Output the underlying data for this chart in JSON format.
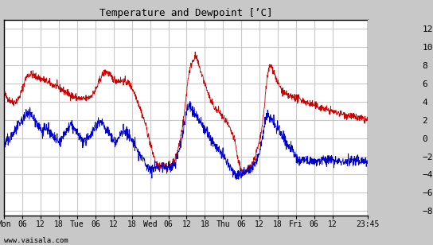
{
  "title": "Temperature and Dewpoint [’C]",
  "ylabel_right_ticks": [
    -8,
    -6,
    -4,
    -2,
    0,
    2,
    4,
    6,
    8,
    10,
    12
  ],
  "ylim": [
    -8.5,
    13.0
  ],
  "background_color": "#c8c8c8",
  "plot_bg_color": "#ffffff",
  "grid_color": "#c8c8c8",
  "temp_color": "#cc0000",
  "dewpoint_color": "#0000cc",
  "watermark": "www.vaisala.com",
  "x_tick_labels": [
    "Mon",
    "06",
    "12",
    "18",
    "Tue",
    "06",
    "12",
    "18",
    "Wed",
    "06",
    "12",
    "18",
    "Thu",
    "06",
    "12",
    "18",
    "Fri",
    "06",
    "12",
    "23:45"
  ],
  "x_tick_positions": [
    0,
    6,
    12,
    18,
    24,
    30,
    36,
    42,
    48,
    54,
    60,
    66,
    72,
    78,
    84,
    90,
    96,
    102,
    108,
    119.75
  ],
  "total_hours": 119.75,
  "temp_data": [
    [
      0,
      5.0
    ],
    [
      0.25,
      4.8
    ],
    [
      0.5,
      4.6
    ],
    [
      0.75,
      4.5
    ],
    [
      1,
      4.4
    ],
    [
      1.5,
      4.2
    ],
    [
      2,
      4.1
    ],
    [
      2.5,
      4.0
    ],
    [
      3,
      3.9
    ],
    [
      3.5,
      4.0
    ],
    [
      4,
      4.1
    ],
    [
      4.5,
      4.3
    ],
    [
      5,
      4.5
    ],
    [
      5.5,
      5.0
    ],
    [
      6,
      5.5
    ],
    [
      6.5,
      6.0
    ],
    [
      7,
      6.5
    ],
    [
      7.5,
      6.8
    ],
    [
      8,
      7.0
    ],
    [
      8.5,
      7.0
    ],
    [
      9,
      7.0
    ],
    [
      9.5,
      6.9
    ],
    [
      10,
      6.8
    ],
    [
      10.5,
      6.7
    ],
    [
      11,
      6.7
    ],
    [
      11.5,
      6.6
    ],
    [
      12,
      6.5
    ],
    [
      12.5,
      6.5
    ],
    [
      13,
      6.4
    ],
    [
      13.5,
      6.3
    ],
    [
      14,
      6.2
    ],
    [
      14.5,
      6.1
    ],
    [
      15,
      6.0
    ],
    [
      15.5,
      5.9
    ],
    [
      16,
      5.8
    ],
    [
      16.5,
      5.8
    ],
    [
      17,
      5.7
    ],
    [
      17.5,
      5.6
    ],
    [
      18,
      5.5
    ],
    [
      18.5,
      5.4
    ],
    [
      19,
      5.3
    ],
    [
      19.5,
      5.2
    ],
    [
      20,
      5.1
    ],
    [
      20.5,
      5.0
    ],
    [
      21,
      4.9
    ],
    [
      21.5,
      4.8
    ],
    [
      22,
      4.7
    ],
    [
      22.5,
      4.6
    ],
    [
      23,
      4.5
    ],
    [
      23.5,
      4.5
    ],
    [
      24,
      4.4
    ],
    [
      24.5,
      4.4
    ],
    [
      25,
      4.3
    ],
    [
      25.5,
      4.3
    ],
    [
      26,
      4.3
    ],
    [
      26.5,
      4.3
    ],
    [
      27,
      4.3
    ],
    [
      27.5,
      4.4
    ],
    [
      28,
      4.5
    ],
    [
      28.5,
      4.6
    ],
    [
      29,
      4.8
    ],
    [
      29.5,
      5.0
    ],
    [
      30,
      5.3
    ],
    [
      30.5,
      5.6
    ],
    [
      31,
      6.0
    ],
    [
      31.5,
      6.4
    ],
    [
      32,
      6.8
    ],
    [
      32.5,
      7.0
    ],
    [
      33,
      7.2
    ],
    [
      33.5,
      7.3
    ],
    [
      34,
      7.2
    ],
    [
      34.5,
      7.0
    ],
    [
      35,
      6.8
    ],
    [
      35.5,
      6.6
    ],
    [
      36,
      6.5
    ],
    [
      36.5,
      6.4
    ],
    [
      37,
      6.3
    ],
    [
      37.5,
      6.3
    ],
    [
      38,
      6.3
    ],
    [
      38.5,
      6.3
    ],
    [
      39,
      6.3
    ],
    [
      39.5,
      6.2
    ],
    [
      40,
      6.2
    ],
    [
      40.5,
      6.1
    ],
    [
      41,
      6.0
    ],
    [
      41.5,
      5.8
    ],
    [
      42,
      5.5
    ],
    [
      42.5,
      5.2
    ],
    [
      43,
      4.8
    ],
    [
      43.5,
      4.4
    ],
    [
      44,
      4.0
    ],
    [
      44.5,
      3.5
    ],
    [
      45,
      3.0
    ],
    [
      45.5,
      2.5
    ],
    [
      46,
      2.0
    ],
    [
      46.5,
      1.5
    ],
    [
      47,
      0.8
    ],
    [
      47.5,
      0.2
    ],
    [
      48,
      -0.5
    ],
    [
      48.5,
      -1.2
    ],
    [
      49,
      -1.8
    ],
    [
      49.5,
      -2.3
    ],
    [
      50,
      -2.8
    ],
    [
      50.5,
      -3.0
    ],
    [
      51,
      -3.2
    ],
    [
      51.5,
      -3.2
    ],
    [
      52,
      -3.0
    ],
    [
      52.5,
      -3.0
    ],
    [
      53,
      -3.0
    ],
    [
      53.5,
      -3.1
    ],
    [
      54,
      -3.2
    ],
    [
      54.5,
      -3.0
    ],
    [
      55,
      -2.8
    ],
    [
      55.5,
      -2.6
    ],
    [
      56,
      -2.4
    ],
    [
      56.5,
      -2.0
    ],
    [
      57,
      -1.5
    ],
    [
      57.5,
      -0.8
    ],
    [
      58,
      0.0
    ],
    [
      58.5,
      1.0
    ],
    [
      59,
      2.0
    ],
    [
      59.5,
      3.5
    ],
    [
      60,
      5.0
    ],
    [
      60.5,
      6.5
    ],
    [
      61,
      7.5
    ],
    [
      61.5,
      8.0
    ],
    [
      62,
      8.5
    ],
    [
      62.5,
      8.8
    ],
    [
      63,
      9.0
    ],
    [
      63.25,
      8.8
    ],
    [
      63.5,
      8.5
    ],
    [
      64,
      8.0
    ],
    [
      64.5,
      7.5
    ],
    [
      65,
      7.0
    ],
    [
      65.5,
      6.5
    ],
    [
      66,
      6.0
    ],
    [
      66.5,
      5.5
    ],
    [
      67,
      5.0
    ],
    [
      67.5,
      4.5
    ],
    [
      68,
      4.0
    ],
    [
      68.5,
      3.8
    ],
    [
      69,
      3.5
    ],
    [
      69.5,
      3.2
    ],
    [
      70,
      3.0
    ],
    [
      70.5,
      3.0
    ],
    [
      71,
      2.8
    ],
    [
      71.5,
      2.5
    ],
    [
      72,
      2.2
    ],
    [
      72.5,
      2.0
    ],
    [
      73,
      1.8
    ],
    [
      73.5,
      1.5
    ],
    [
      74,
      1.2
    ],
    [
      74.5,
      0.8
    ],
    [
      75,
      0.5
    ],
    [
      75.5,
      0.0
    ],
    [
      76,
      -0.5
    ],
    [
      76.5,
      -1.5
    ],
    [
      77,
      -2.5
    ],
    [
      77.5,
      -3.0
    ],
    [
      78,
      -3.5
    ],
    [
      78.5,
      -3.8
    ],
    [
      79,
      -3.8
    ],
    [
      79.5,
      -3.7
    ],
    [
      80,
      -3.5
    ],
    [
      80.5,
      -3.3
    ],
    [
      81,
      -3.0
    ],
    [
      81.5,
      -2.8
    ],
    [
      82,
      -2.5
    ],
    [
      82.5,
      -2.0
    ],
    [
      83,
      -1.5
    ],
    [
      83.5,
      -1.0
    ],
    [
      84,
      -0.5
    ],
    [
      84.5,
      0.5
    ],
    [
      85,
      1.5
    ],
    [
      85.5,
      3.0
    ],
    [
      86,
      5.0
    ],
    [
      86.5,
      6.5
    ],
    [
      87,
      7.5
    ],
    [
      87.5,
      8.0
    ],
    [
      88,
      7.8
    ],
    [
      88.5,
      7.5
    ],
    [
      89,
      7.0
    ],
    [
      89.5,
      6.5
    ],
    [
      90,
      6.0
    ],
    [
      90.5,
      5.8
    ],
    [
      91,
      5.5
    ],
    [
      91.5,
      5.2
    ],
    [
      92,
      5.0
    ],
    [
      92.5,
      4.8
    ],
    [
      93,
      4.7
    ],
    [
      93.5,
      4.6
    ],
    [
      94,
      4.6
    ],
    [
      94.5,
      4.5
    ],
    [
      95,
      4.5
    ],
    [
      95.5,
      4.5
    ],
    [
      96,
      4.4
    ],
    [
      96.5,
      4.3
    ],
    [
      97,
      4.3
    ],
    [
      97.5,
      4.2
    ],
    [
      98,
      4.2
    ],
    [
      98.5,
      4.1
    ],
    [
      99,
      4.0
    ],
    [
      99.5,
      3.9
    ],
    [
      100,
      3.8
    ],
    [
      100.5,
      3.8
    ],
    [
      101,
      3.7
    ],
    [
      101.5,
      3.7
    ],
    [
      102,
      3.6
    ],
    [
      102.5,
      3.5
    ],
    [
      103,
      3.5
    ],
    [
      103.5,
      3.4
    ],
    [
      104,
      3.4
    ],
    [
      104.5,
      3.3
    ],
    [
      105,
      3.3
    ],
    [
      105.5,
      3.2
    ],
    [
      106,
      3.1
    ],
    [
      106.5,
      3.1
    ],
    [
      107,
      3.0
    ],
    [
      107.5,
      3.0
    ],
    [
      108,
      2.9
    ],
    [
      108.5,
      2.9
    ],
    [
      109,
      2.8
    ],
    [
      109.5,
      2.8
    ],
    [
      110,
      2.8
    ],
    [
      110.5,
      2.7
    ],
    [
      111,
      2.7
    ],
    [
      111.5,
      2.6
    ],
    [
      112,
      2.6
    ],
    [
      112.5,
      2.5
    ],
    [
      113,
      2.5
    ],
    [
      113.5,
      2.5
    ],
    [
      114,
      2.4
    ],
    [
      114.5,
      2.4
    ],
    [
      115,
      2.3
    ],
    [
      115.5,
      2.3
    ],
    [
      116,
      2.2
    ],
    [
      116.5,
      2.2
    ],
    [
      117,
      2.2
    ],
    [
      117.5,
      2.1
    ],
    [
      118,
      2.1
    ],
    [
      118.5,
      2.0
    ],
    [
      119,
      2.0
    ],
    [
      119.75,
      2.0
    ]
  ],
  "dewpoint_data": [
    [
      0,
      -0.5
    ],
    [
      0.25,
      -0.6
    ],
    [
      0.5,
      -0.5
    ],
    [
      0.75,
      -0.4
    ],
    [
      1,
      -0.3
    ],
    [
      1.5,
      -0.2
    ],
    [
      2,
      0.0
    ],
    [
      2.5,
      0.3
    ],
    [
      3,
      0.5
    ],
    [
      3.5,
      0.8
    ],
    [
      4,
      1.0
    ],
    [
      4.5,
      1.2
    ],
    [
      5,
      1.5
    ],
    [
      5.5,
      1.8
    ],
    [
      6,
      2.0
    ],
    [
      6.5,
      2.2
    ],
    [
      7,
      2.5
    ],
    [
      7.5,
      2.8
    ],
    [
      8,
      3.0
    ],
    [
      8.5,
      2.8
    ],
    [
      9,
      2.5
    ],
    [
      9.5,
      2.3
    ],
    [
      10,
      2.0
    ],
    [
      10.5,
      1.8
    ],
    [
      11,
      1.5
    ],
    [
      11.5,
      1.3
    ],
    [
      12,
      1.0
    ],
    [
      12.5,
      0.8
    ],
    [
      13,
      1.0
    ],
    [
      13.5,
      1.2
    ],
    [
      14,
      1.0
    ],
    [
      14.5,
      0.8
    ],
    [
      15,
      0.5
    ],
    [
      15.5,
      0.3
    ],
    [
      16,
      0.2
    ],
    [
      16.5,
      0.0
    ],
    [
      17,
      -0.2
    ],
    [
      17.5,
      -0.3
    ],
    [
      18,
      -0.5
    ],
    [
      18.5,
      -0.3
    ],
    [
      19,
      0.0
    ],
    [
      19.5,
      0.2
    ],
    [
      20,
      0.5
    ],
    [
      20.5,
      0.8
    ],
    [
      21,
      1.0
    ],
    [
      21.5,
      1.2
    ],
    [
      22,
      1.5
    ],
    [
      22.5,
      1.2
    ],
    [
      23,
      1.0
    ],
    [
      23.5,
      0.8
    ],
    [
      24,
      0.5
    ],
    [
      24.5,
      0.3
    ],
    [
      25,
      0.0
    ],
    [
      25.5,
      -0.2
    ],
    [
      26,
      -0.3
    ],
    [
      26.5,
      -0.5
    ],
    [
      27,
      -0.3
    ],
    [
      27.5,
      0.0
    ],
    [
      28,
      0.3
    ],
    [
      28.5,
      0.5
    ],
    [
      29,
      0.8
    ],
    [
      29.5,
      1.0
    ],
    [
      30,
      1.2
    ],
    [
      30.5,
      1.5
    ],
    [
      31,
      1.8
    ],
    [
      31.5,
      2.0
    ],
    [
      32,
      1.8
    ],
    [
      32.5,
      1.5
    ],
    [
      33,
      1.3
    ],
    [
      33.5,
      1.0
    ],
    [
      34,
      0.8
    ],
    [
      34.5,
      0.5
    ],
    [
      35,
      0.3
    ],
    [
      35.5,
      0.0
    ],
    [
      36,
      -0.2
    ],
    [
      36.5,
      -0.5
    ],
    [
      37,
      -0.3
    ],
    [
      37.5,
      0.0
    ],
    [
      38,
      0.2
    ],
    [
      38.5,
      0.5
    ],
    [
      39,
      0.8
    ],
    [
      39.5,
      1.0
    ],
    [
      40,
      0.8
    ],
    [
      40.5,
      0.5
    ],
    [
      41,
      0.2
    ],
    [
      41.5,
      0.0
    ],
    [
      42,
      -0.3
    ],
    [
      42.5,
      -0.5
    ],
    [
      43,
      -0.8
    ],
    [
      43.5,
      -1.2
    ],
    [
      44,
      -1.5
    ],
    [
      44.5,
      -1.8
    ],
    [
      45,
      -2.0
    ],
    [
      45.5,
      -2.3
    ],
    [
      46,
      -2.5
    ],
    [
      46.5,
      -2.8
    ],
    [
      47,
      -3.0
    ],
    [
      47.5,
      -3.2
    ],
    [
      48,
      -3.3
    ],
    [
      48.5,
      -3.5
    ],
    [
      49,
      -3.5
    ],
    [
      49.5,
      -3.3
    ],
    [
      50,
      -3.0
    ],
    [
      50.5,
      -3.2
    ],
    [
      51,
      -3.3
    ],
    [
      51.5,
      -3.2
    ],
    [
      52,
      -3.0
    ],
    [
      52.5,
      -3.2
    ],
    [
      53,
      -3.3
    ],
    [
      53.5,
      -3.2
    ],
    [
      54,
      -3.0
    ],
    [
      54.5,
      -3.2
    ],
    [
      55,
      -3.3
    ],
    [
      55.5,
      -3.0
    ],
    [
      56,
      -2.8
    ],
    [
      56.5,
      -2.5
    ],
    [
      57,
      -2.0
    ],
    [
      57.5,
      -1.5
    ],
    [
      58,
      -0.8
    ],
    [
      58.5,
      0.0
    ],
    [
      59,
      1.0
    ],
    [
      59.5,
      2.0
    ],
    [
      60,
      3.0
    ],
    [
      60.5,
      3.5
    ],
    [
      61,
      3.5
    ],
    [
      61.5,
      3.2
    ],
    [
      62,
      3.0
    ],
    [
      62.5,
      2.8
    ],
    [
      63,
      2.5
    ],
    [
      63.5,
      2.3
    ],
    [
      64,
      2.0
    ],
    [
      64.5,
      1.8
    ],
    [
      65,
      1.5
    ],
    [
      65.5,
      1.2
    ],
    [
      66,
      1.0
    ],
    [
      66.5,
      0.8
    ],
    [
      67,
      0.5
    ],
    [
      67.5,
      0.2
    ],
    [
      68,
      0.0
    ],
    [
      68.5,
      -0.3
    ],
    [
      69,
      -0.5
    ],
    [
      69.5,
      -0.8
    ],
    [
      70,
      -1.0
    ],
    [
      70.5,
      -1.3
    ],
    [
      71,
      -1.5
    ],
    [
      71.5,
      -1.8
    ],
    [
      72,
      -2.0
    ],
    [
      72.5,
      -2.3
    ],
    [
      73,
      -2.5
    ],
    [
      73.5,
      -2.8
    ],
    [
      74,
      -3.0
    ],
    [
      74.5,
      -3.2
    ],
    [
      75,
      -3.5
    ],
    [
      75.5,
      -3.8
    ],
    [
      76,
      -4.0
    ],
    [
      76.5,
      -4.0
    ],
    [
      77,
      -4.0
    ],
    [
      77.5,
      -4.0
    ],
    [
      78,
      -4.0
    ],
    [
      78.5,
      -3.8
    ],
    [
      79,
      -3.5
    ],
    [
      79.5,
      -3.5
    ],
    [
      80,
      -3.5
    ],
    [
      80.5,
      -3.5
    ],
    [
      81,
      -3.5
    ],
    [
      81.5,
      -3.3
    ],
    [
      82,
      -3.0
    ],
    [
      82.5,
      -2.8
    ],
    [
      83,
      -2.5
    ],
    [
      83.5,
      -2.0
    ],
    [
      84,
      -1.5
    ],
    [
      84.5,
      -0.8
    ],
    [
      85,
      0.0
    ],
    [
      85.5,
      1.0
    ],
    [
      86,
      2.0
    ],
    [
      86.5,
      2.5
    ],
    [
      87,
      2.5
    ],
    [
      87.5,
      2.2
    ],
    [
      88,
      2.0
    ],
    [
      88.5,
      1.8
    ],
    [
      89,
      1.5
    ],
    [
      89.5,
      1.2
    ],
    [
      90,
      1.0
    ],
    [
      90.5,
      0.8
    ],
    [
      91,
      0.5
    ],
    [
      91.5,
      0.3
    ],
    [
      92,
      0.0
    ],
    [
      92.5,
      -0.3
    ],
    [
      93,
      -0.5
    ],
    [
      93.5,
      -0.8
    ],
    [
      94,
      -1.0
    ],
    [
      94.5,
      -1.2
    ],
    [
      95,
      -1.5
    ],
    [
      95.5,
      -1.8
    ],
    [
      96,
      -2.0
    ],
    [
      96.5,
      -2.2
    ],
    [
      97,
      -2.3
    ],
    [
      97.5,
      -2.5
    ],
    [
      98,
      -2.5
    ],
    [
      98.5,
      -2.5
    ],
    [
      99,
      -2.5
    ],
    [
      99.5,
      -2.5
    ],
    [
      100,
      -2.5
    ],
    [
      100.5,
      -2.5
    ],
    [
      101,
      -2.5
    ],
    [
      101.5,
      -2.5
    ],
    [
      102,
      -2.5
    ],
    [
      102.5,
      -2.5
    ],
    [
      103,
      -2.5
    ],
    [
      103.5,
      -2.5
    ],
    [
      104,
      -2.5
    ],
    [
      104.5,
      -2.5
    ],
    [
      105,
      -2.5
    ],
    [
      105.5,
      -2.5
    ],
    [
      106,
      -2.5
    ],
    [
      106.5,
      -2.5
    ],
    [
      107,
      -2.5
    ],
    [
      107.5,
      -2.5
    ],
    [
      108,
      -2.5
    ],
    [
      108.5,
      -2.5
    ],
    [
      109,
      -2.5
    ],
    [
      109.5,
      -2.5
    ],
    [
      110,
      -2.5
    ],
    [
      110.5,
      -2.5
    ],
    [
      111,
      -2.5
    ],
    [
      111.5,
      -2.5
    ],
    [
      112,
      -2.5
    ],
    [
      112.5,
      -2.5
    ],
    [
      113,
      -2.5
    ],
    [
      113.5,
      -2.5
    ],
    [
      114,
      -2.5
    ],
    [
      114.5,
      -2.5
    ],
    [
      115,
      -2.5
    ],
    [
      115.5,
      -2.5
    ],
    [
      116,
      -2.5
    ],
    [
      116.5,
      -2.5
    ],
    [
      117,
      -2.5
    ],
    [
      117.5,
      -2.5
    ],
    [
      118,
      -2.5
    ],
    [
      118.5,
      -2.5
    ],
    [
      119,
      -2.5
    ],
    [
      119.75,
      -2.5
    ]
  ],
  "noise_seed": 42,
  "temp_noise_scale": 0.2,
  "dew_noise_scale": 0.3
}
